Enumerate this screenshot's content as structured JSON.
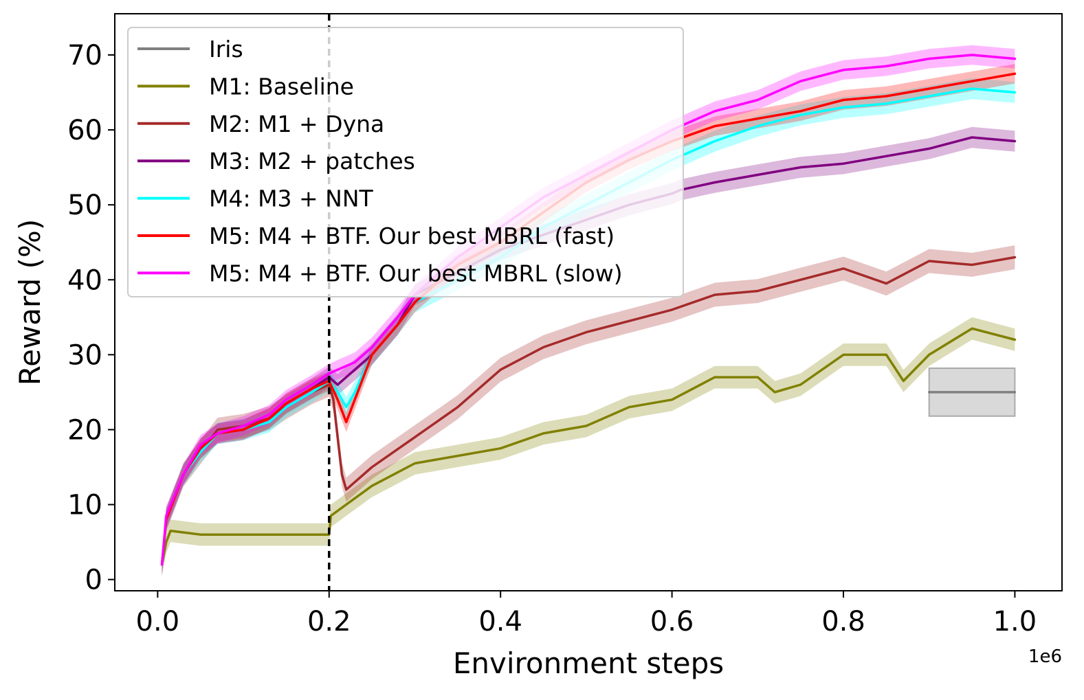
{
  "chart_data": {
    "type": "line",
    "xlabel": "Environment steps",
    "ylabel": "Reward (%)",
    "x_offset_label": "1e6",
    "xlim": [
      -0.05,
      1.055
    ],
    "ylim": [
      -1.5,
      75.5
    ],
    "xticks": [
      {
        "value": 0.0,
        "label": "0.0"
      },
      {
        "value": 0.2,
        "label": "0.2"
      },
      {
        "value": 0.4,
        "label": "0.4"
      },
      {
        "value": 0.6,
        "label": "0.6"
      },
      {
        "value": 0.8,
        "label": "0.8"
      },
      {
        "value": 1.0,
        "label": "1.0"
      }
    ],
    "yticks": [
      {
        "value": 0,
        "label": "0"
      },
      {
        "value": 10,
        "label": "10"
      },
      {
        "value": 20,
        "label": "20"
      },
      {
        "value": 30,
        "label": "30"
      },
      {
        "value": 40,
        "label": "40"
      },
      {
        "value": 50,
        "label": "50"
      },
      {
        "value": 60,
        "label": "60"
      },
      {
        "value": 70,
        "label": "70"
      }
    ],
    "vline_x": 0.2,
    "legend_position": "upper-left",
    "series": [
      {
        "name": "Iris",
        "color": "#808080",
        "x": [
          0.9,
          1.0
        ],
        "values": [
          25,
          25
        ],
        "band_low": [
          21.8,
          21.8
        ],
        "band_high": [
          28.2,
          28.2
        ]
      },
      {
        "name": "M1: Baseline",
        "color": "#808000",
        "x": [
          0.005,
          0.01,
          0.015,
          0.05,
          0.08,
          0.1,
          0.13,
          0.15,
          0.18,
          0.2,
          0.202,
          0.22,
          0.25,
          0.3,
          0.35,
          0.4,
          0.45,
          0.5,
          0.55,
          0.6,
          0.65,
          0.7,
          0.72,
          0.75,
          0.8,
          0.85,
          0.87,
          0.9,
          0.95,
          1.0
        ],
        "values": [
          2,
          5,
          6.5,
          6,
          6,
          6,
          6,
          6,
          6,
          6,
          8.5,
          10,
          12.5,
          15.5,
          16.5,
          17.5,
          19.5,
          20.5,
          23,
          24,
          27,
          27,
          25,
          26,
          30,
          30,
          26.5,
          30,
          33.5,
          32
        ],
        "band": 1.5
      },
      {
        "name": "M2: M1 + Dyna",
        "color": "#a52a2a",
        "x": [
          0.005,
          0.01,
          0.03,
          0.05,
          0.07,
          0.1,
          0.13,
          0.15,
          0.18,
          0.2,
          0.205,
          0.21,
          0.215,
          0.22,
          0.25,
          0.3,
          0.35,
          0.4,
          0.45,
          0.5,
          0.55,
          0.6,
          0.65,
          0.7,
          0.75,
          0.8,
          0.85,
          0.9,
          0.95,
          1.0
        ],
        "values": [
          2,
          8,
          14,
          17,
          20,
          20.5,
          21.5,
          23,
          25,
          26,
          24,
          19,
          14,
          12,
          15,
          19,
          23,
          28,
          31,
          33,
          34.5,
          36,
          38,
          38.5,
          40,
          41.5,
          39.5,
          42.5,
          42,
          43
        ],
        "band": 1.6
      },
      {
        "name": "M3: M2 + patches",
        "color": "#800080",
        "x": [
          0.005,
          0.01,
          0.03,
          0.05,
          0.07,
          0.1,
          0.13,
          0.15,
          0.18,
          0.2,
          0.21,
          0.23,
          0.25,
          0.28,
          0.3,
          0.35,
          0.4,
          0.45,
          0.5,
          0.55,
          0.6,
          0.61,
          0.65,
          0.7,
          0.75,
          0.8,
          0.85,
          0.9,
          0.95,
          1.0
        ],
        "values": [
          2,
          8,
          14,
          17.5,
          19.5,
          20,
          21.5,
          23.5,
          25.5,
          27,
          26,
          28,
          30,
          34,
          38,
          41,
          44,
          46,
          48,
          50,
          51.5,
          52,
          53,
          54,
          55,
          55.5,
          56.5,
          57.5,
          59,
          58.5
        ],
        "band": 1.4
      },
      {
        "name": "M4: M3 + NNT",
        "color": "#00ffff",
        "x": [
          0.005,
          0.01,
          0.03,
          0.05,
          0.07,
          0.1,
          0.13,
          0.15,
          0.18,
          0.2,
          0.21,
          0.22,
          0.23,
          0.25,
          0.28,
          0.3,
          0.35,
          0.4,
          0.45,
          0.5,
          0.55,
          0.6,
          0.65,
          0.7,
          0.75,
          0.8,
          0.85,
          0.9,
          0.95,
          1.0
        ],
        "values": [
          2,
          8,
          14,
          17,
          19.5,
          20,
          21,
          23,
          25,
          26.5,
          25,
          23,
          25,
          30,
          34,
          37,
          40,
          43,
          47,
          50,
          53,
          56,
          58.5,
          60.5,
          62,
          63,
          63.5,
          64.5,
          65.5,
          65
        ],
        "band": 1.4
      },
      {
        "name": "M5: M4 + BTF. Our best MBRL (fast)",
        "color": "#ff0000",
        "x": [
          0.005,
          0.01,
          0.03,
          0.05,
          0.07,
          0.1,
          0.13,
          0.15,
          0.18,
          0.2,
          0.21,
          0.22,
          0.23,
          0.25,
          0.28,
          0.3,
          0.35,
          0.4,
          0.45,
          0.5,
          0.55,
          0.6,
          0.65,
          0.7,
          0.75,
          0.8,
          0.85,
          0.9,
          0.95,
          1.0
        ],
        "values": [
          2,
          8,
          14,
          17.5,
          19.5,
          20,
          21.5,
          23.5,
          25.5,
          26.5,
          24,
          21,
          24,
          30,
          34,
          37,
          42,
          45,
          49,
          53,
          56,
          58.5,
          60.5,
          61.5,
          62.5,
          64,
          64.5,
          65.5,
          66.5,
          67.5
        ],
        "band": 1.3
      },
      {
        "name": "M5: M4 + BTF. Our best MBRL (slow)",
        "color": "#ff00ff",
        "x": [
          0.005,
          0.01,
          0.03,
          0.05,
          0.07,
          0.1,
          0.13,
          0.15,
          0.18,
          0.2,
          0.21,
          0.23,
          0.25,
          0.28,
          0.3,
          0.35,
          0.4,
          0.45,
          0.5,
          0.55,
          0.6,
          0.65,
          0.7,
          0.75,
          0.8,
          0.85,
          0.9,
          0.95,
          1.0
        ],
        "values": [
          2,
          8.5,
          14,
          18,
          19.5,
          20.5,
          22,
          24,
          26,
          27.5,
          28,
          29,
          31,
          35,
          38,
          43,
          47,
          51,
          54,
          57,
          60,
          62.5,
          64,
          66.5,
          68,
          68.5,
          69.5,
          70,
          69.5
        ],
        "band": 1.3
      }
    ]
  }
}
